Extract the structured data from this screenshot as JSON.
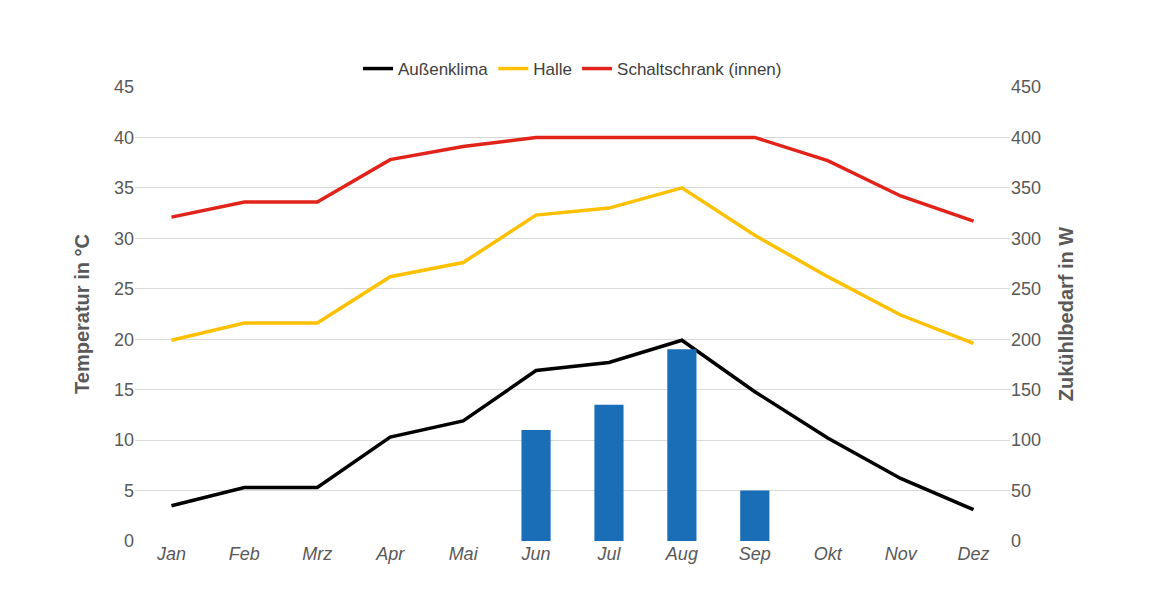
{
  "chart_data": {
    "type": "line",
    "categories": [
      "Jan",
      "Feb",
      "Mrz",
      "Apr",
      "Mai",
      "Jun",
      "Jul",
      "Aug",
      "Sep",
      "Okt",
      "Nov",
      "Dez"
    ],
    "y_label": "Temperatur in °C",
    "y2_label": "Zukühlbedarf in W",
    "ylim": [
      0,
      45
    ],
    "yticks": [
      0,
      5,
      10,
      15,
      20,
      25,
      30,
      35,
      40,
      45
    ],
    "y2lim": [
      0,
      450
    ],
    "y2ticks": [
      0,
      50,
      100,
      150,
      200,
      250,
      300,
      350,
      400,
      450
    ],
    "grid": true,
    "legend": "top",
    "series": [
      {
        "name": "Außenklima",
        "type": "line",
        "color": "#000000",
        "values": [
          3.5,
          5.3,
          5.3,
          10.3,
          11.9,
          16.9,
          17.7,
          19.9,
          14.8,
          10.2,
          6.2,
          3.1
        ]
      },
      {
        "name": "Halle",
        "type": "line",
        "color": "#ffc000",
        "values": [
          19.9,
          21.6,
          21.6,
          26.2,
          27.6,
          32.3,
          33.0,
          35.0,
          30.3,
          26.2,
          22.4,
          19.6
        ]
      },
      {
        "name": "Schaltschrank (innen)",
        "type": "line",
        "color": "#e2231a",
        "values": [
          32.1,
          33.6,
          33.6,
          37.8,
          39.1,
          40.0,
          40.0,
          40.0,
          40.0,
          37.7,
          34.2,
          31.7
        ]
      },
      {
        "type": "bar",
        "axis": "y2",
        "color": "#1a6eb8",
        "values": [
          null,
          null,
          null,
          null,
          null,
          110,
          135,
          190,
          50,
          null,
          null,
          null
        ]
      }
    ]
  }
}
